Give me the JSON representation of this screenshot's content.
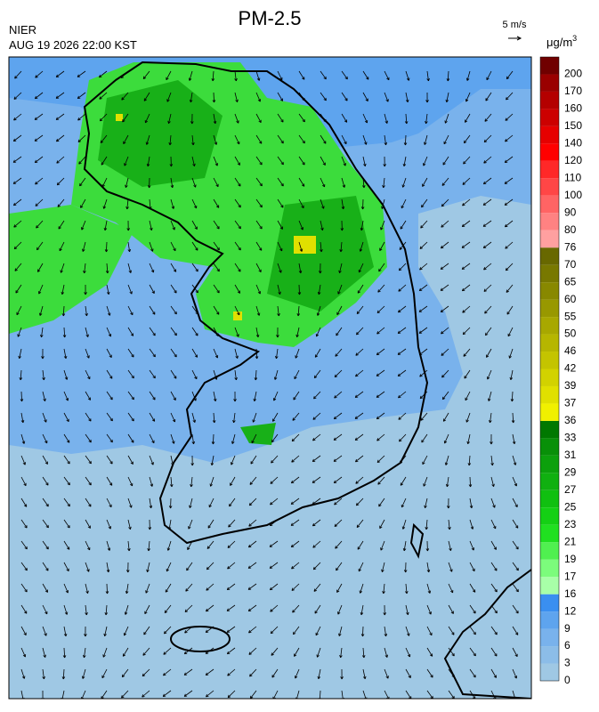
{
  "header": {
    "title": "PM-2.5",
    "source": "NIER",
    "datetime": "AUG 19 2026 22:00 KST",
    "wind_scale": "5 m/s"
  },
  "colorbar": {
    "unit": "μg/m",
    "unit_sup": "3",
    "levels": [
      0,
      3,
      6,
      9,
      12,
      16,
      17,
      19,
      21,
      23,
      25,
      27,
      29,
      31,
      33,
      36,
      37,
      39,
      42,
      46,
      50,
      55,
      60,
      65,
      70,
      76,
      80,
      90,
      100,
      110,
      120,
      140,
      150,
      160,
      170,
      200
    ],
    "colors": [
      "#9fc8e4",
      "#8cbde8",
      "#79b2ec",
      "#5ea4ee",
      "#3a8ff0",
      "#a8ffa8",
      "#7cfc7c",
      "#50f050",
      "#20e020",
      "#14d014",
      "#10c010",
      "#10b010",
      "#0ca00c",
      "#089008",
      "#007800",
      "#f0f000",
      "#e0e000",
      "#d2d200",
      "#c4c400",
      "#b6b600",
      "#a8a800",
      "#989800",
      "#888800",
      "#787800",
      "#686800",
      "#ffa0a0",
      "#ff8282",
      "#ff6464",
      "#ff4646",
      "#ff2828",
      "#ff0000",
      "#e60000",
      "#cc0000",
      "#b40000",
      "#9a0000",
      "#700000"
    ]
  }
}
